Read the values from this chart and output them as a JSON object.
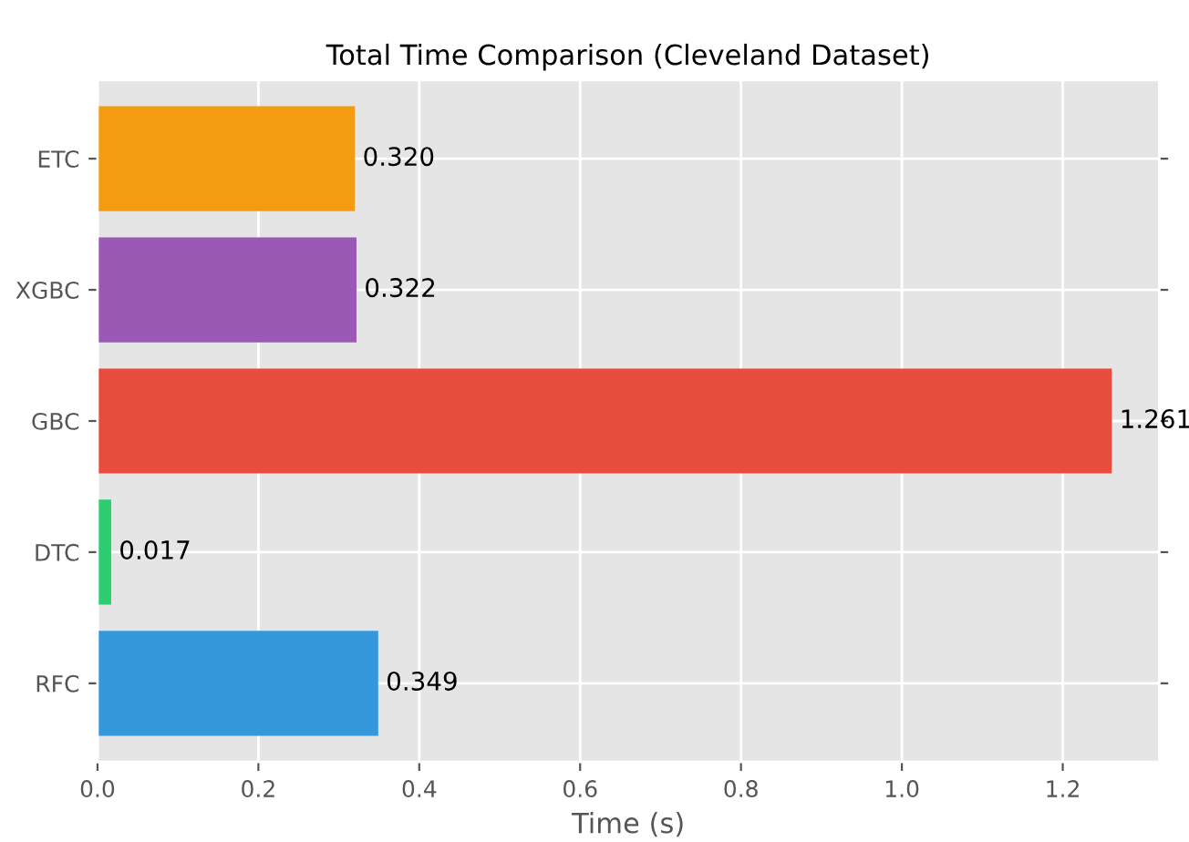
{
  "chart_data": {
    "type": "bar",
    "orientation": "horizontal",
    "title": "Total Time Comparison (Cleveland Dataset)",
    "xlabel": "Time (s)",
    "categories": [
      "ETC",
      "XGBC",
      "GBC",
      "DTC",
      "RFC"
    ],
    "values": [
      0.32,
      0.322,
      1.261,
      0.017,
      0.349
    ],
    "colors": [
      "#f39c12",
      "#9b59b6",
      "#e74c3c",
      "#2ecc71",
      "#3498db"
    ],
    "value_labels": [
      "0.320",
      "0.322",
      "1.261",
      "0.017",
      "0.349"
    ],
    "xlim": [
      0,
      1.32
    ],
    "xticks": [
      {
        "value": 0,
        "label": "0.0"
      },
      {
        "value": 0.2,
        "label": "0.2"
      },
      {
        "value": 0.4,
        "label": "0.4"
      },
      {
        "value": 0.6,
        "label": "0.6"
      },
      {
        "value": 0.8,
        "label": "0.8"
      },
      {
        "value": 1.0,
        "label": "1.0"
      },
      {
        "value": 1.2,
        "label": "1.2"
      }
    ],
    "grid": true,
    "legend": false
  }
}
